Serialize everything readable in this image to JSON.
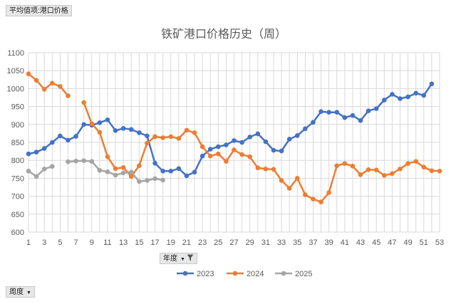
{
  "pivot": {
    "value_field": "平均值项:港口价格",
    "legend_field": "年度",
    "axis_field": "周度"
  },
  "chart_data": {
    "type": "line",
    "title": "铁矿港口价格历史（周）",
    "xlabel": "",
    "ylabel": "",
    "x": [
      1,
      2,
      3,
      4,
      5,
      6,
      7,
      8,
      9,
      10,
      11,
      12,
      13,
      14,
      15,
      16,
      17,
      18,
      19,
      20,
      21,
      22,
      23,
      24,
      25,
      26,
      27,
      28,
      29,
      30,
      31,
      32,
      33,
      34,
      35,
      36,
      37,
      38,
      39,
      40,
      41,
      42,
      43,
      44,
      45,
      46,
      47,
      48,
      49,
      50,
      51,
      52,
      53
    ],
    "x_tick_labels": [
      "1",
      "3",
      "5",
      "7",
      "9",
      "11",
      "13",
      "15",
      "17",
      "19",
      "21",
      "23",
      "25",
      "27",
      "29",
      "31",
      "33",
      "35",
      "37",
      "39",
      "41",
      "43",
      "45",
      "47",
      "49",
      "51",
      "53"
    ],
    "xlim": [
      1,
      53
    ],
    "ylim": [
      600,
      1100
    ],
    "y_ticks": [
      600,
      650,
      700,
      750,
      800,
      850,
      900,
      950,
      1000,
      1050,
      1100
    ],
    "grid": true,
    "legend_position": "bottom",
    "series": [
      {
        "name": "2023",
        "color": "#4472C4",
        "values": [
          818,
          823,
          833,
          850,
          868,
          856,
          867,
          900,
          898,
          905,
          913,
          883,
          889,
          886,
          877,
          868,
          792,
          770,
          770,
          777,
          757,
          767,
          812,
          831,
          838,
          843,
          855,
          850,
          865,
          874,
          852,
          828,
          826,
          859,
          869,
          888,
          906,
          936,
          934,
          934,
          919,
          925,
          911,
          938,
          944,
          968,
          984,
          972,
          977,
          987,
          981,
          1013,
          null
        ]
      },
      {
        "name": "2024",
        "color": "#ED7D31",
        "values": [
          1041,
          1023,
          998,
          1015,
          1006,
          980,
          null,
          961,
          902,
          878,
          810,
          777,
          780,
          755,
          785,
          848,
          866,
          863,
          866,
          861,
          884,
          877,
          838,
          812,
          818,
          797,
          829,
          816,
          810,
          779,
          776,
          775,
          744,
          722,
          750,
          704,
          692,
          684,
          710,
          785,
          791,
          784,
          760,
          774,
          773,
          758,
          763,
          776,
          791,
          797,
          781,
          771,
          770
        ]
      },
      {
        "name": "2025",
        "color": "#A5A5A5",
        "values": [
          770,
          755,
          776,
          783,
          null,
          796,
          798,
          799,
          797,
          772,
          768,
          759,
          765,
          767,
          741,
          744,
          749,
          745,
          null,
          null,
          null,
          null,
          null,
          null,
          null,
          null,
          null,
          null,
          null,
          null,
          null,
          null,
          null,
          null,
          null,
          null,
          null,
          null,
          null,
          null,
          null,
          null,
          null,
          null,
          null,
          null,
          null,
          null,
          null,
          null,
          null,
          null,
          null
        ]
      }
    ]
  }
}
